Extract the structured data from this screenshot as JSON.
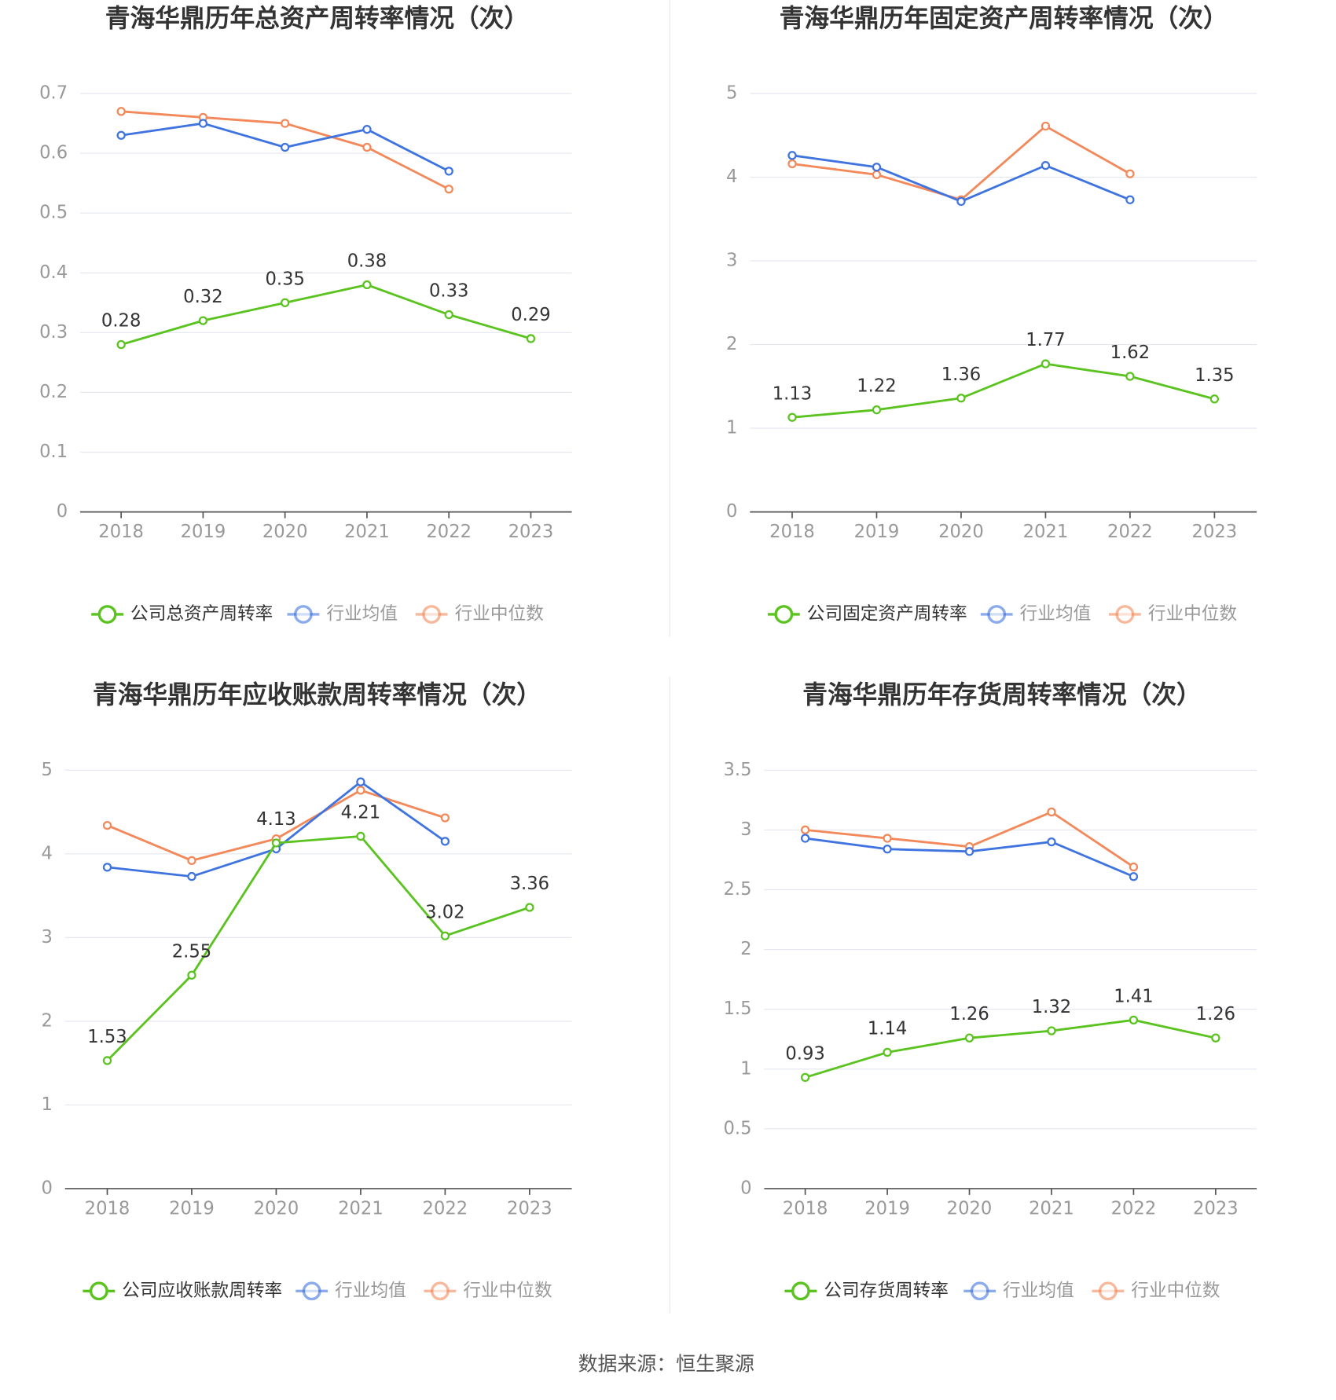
{
  "chart_data": [
    {
      "type": "line",
      "title": "青海华鼎历年总资产周转率情况（次）",
      "categories": [
        "2018",
        "2019",
        "2020",
        "2021",
        "2022",
        "2023"
      ],
      "series": [
        {
          "name": "公司总资产周转率",
          "color": "#5ac31f",
          "values": [
            0.28,
            0.32,
            0.35,
            0.38,
            0.33,
            0.29
          ]
        },
        {
          "name": "行业均值",
          "color": "#3f74e0",
          "values": [
            0.63,
            0.65,
            0.61,
            0.64,
            0.57,
            null
          ]
        },
        {
          "name": "行业中位数",
          "color": "#f3895a",
          "values": [
            0.67,
            0.66,
            0.65,
            0.61,
            0.54,
            null
          ]
        }
      ],
      "ylim": [
        0,
        0.7
      ],
      "yticks": [
        0,
        0.1,
        0.2,
        0.3,
        0.4,
        0.5,
        0.6,
        0.7
      ],
      "grid": true
    },
    {
      "type": "line",
      "title": "青海华鼎历年固定资产周转率情况（次）",
      "categories": [
        "2018",
        "2019",
        "2020",
        "2021",
        "2022",
        "2023"
      ],
      "series": [
        {
          "name": "公司固定资产周转率",
          "color": "#5ac31f",
          "values": [
            1.13,
            1.22,
            1.36,
            1.77,
            1.62,
            1.35
          ]
        },
        {
          "name": "行业均值",
          "color": "#3f74e0",
          "values": [
            4.26,
            4.12,
            3.71,
            4.14,
            3.73,
            null
          ]
        },
        {
          "name": "行业中位数",
          "color": "#f3895a",
          "values": [
            4.16,
            4.03,
            3.73,
            4.61,
            4.04,
            null
          ]
        }
      ],
      "ylim": [
        0,
        5
      ],
      "yticks": [
        0,
        1,
        2,
        3,
        4,
        5
      ],
      "grid": true
    },
    {
      "type": "line",
      "title": "青海华鼎历年应收账款周转率情况（次）",
      "categories": [
        "2018",
        "2019",
        "2020",
        "2021",
        "2022",
        "2023"
      ],
      "series": [
        {
          "name": "公司应收账款周转率",
          "color": "#5ac31f",
          "values": [
            1.53,
            2.55,
            4.13,
            4.21,
            3.02,
            3.36
          ]
        },
        {
          "name": "行业均值",
          "color": "#3f74e0",
          "values": [
            3.84,
            3.73,
            4.06,
            4.86,
            4.15,
            null
          ]
        },
        {
          "name": "行业中位数",
          "color": "#f3895a",
          "values": [
            4.34,
            3.92,
            4.18,
            4.76,
            4.43,
            null
          ]
        }
      ],
      "ylim": [
        0,
        5
      ],
      "yticks": [
        0,
        1,
        2,
        3,
        4,
        5
      ],
      "grid": true
    },
    {
      "type": "line",
      "title": "青海华鼎历年存货周转率情况（次）",
      "categories": [
        "2018",
        "2019",
        "2020",
        "2021",
        "2022",
        "2023"
      ],
      "series": [
        {
          "name": "公司存货周转率",
          "color": "#5ac31f",
          "values": [
            0.93,
            1.14,
            1.26,
            1.32,
            1.41,
            1.26
          ]
        },
        {
          "name": "行业均值",
          "color": "#3f74e0",
          "values": [
            2.93,
            2.84,
            2.82,
            2.9,
            2.61,
            null
          ]
        },
        {
          "name": "行业中位数",
          "color": "#f3895a",
          "values": [
            3.0,
            2.93,
            2.86,
            3.15,
            2.69,
            null
          ]
        }
      ],
      "ylim": [
        0,
        3.5
      ],
      "yticks": [
        0,
        0.5,
        1,
        1.5,
        2,
        2.5,
        3,
        3.5
      ],
      "grid": true
    }
  ],
  "source": "数据来源：恒生聚源"
}
